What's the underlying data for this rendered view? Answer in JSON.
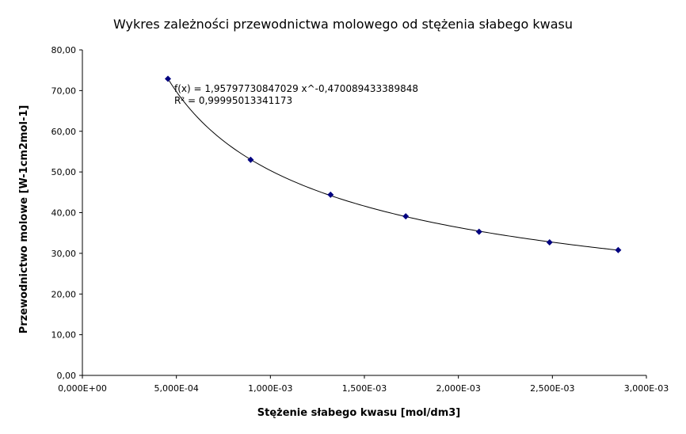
{
  "chart_data": {
    "type": "scatter",
    "title": "Wykres zależności przewodnictwa molowego od stężenia słabego kwasu",
    "xlabel": "Stężenie słabego kwasu [mol/dm3]",
    "ylabel": "Przewodnictwo molowe [W-1cm2mol-1]",
    "xlim": [
      0,
      0.003
    ],
    "ylim": [
      0,
      80
    ],
    "x_ticks": [
      0,
      0.0005,
      0.001,
      0.0015,
      0.002,
      0.0025,
      0.003
    ],
    "x_tick_labels": [
      "0,000E+00",
      "5,000E-04",
      "1,000E-03",
      "1,500E-03",
      "2,000E-03",
      "2,500E-03",
      "3,000E-03"
    ],
    "y_ticks": [
      0,
      10,
      20,
      30,
      40,
      50,
      60,
      70,
      80
    ],
    "y_tick_labels": [
      "0,00",
      "10,00",
      "20,00",
      "30,00",
      "40,00",
      "50,00",
      "60,00",
      "70,00",
      "80,00"
    ],
    "grid": false,
    "series": [
      {
        "x": [
          0.000455,
          0.000895,
          0.00132,
          0.00172,
          0.00211,
          0.002485,
          0.00285
        ],
        "y": [
          72.9,
          53.0,
          44.4,
          39.1,
          35.3,
          32.7,
          30.8
        ]
      }
    ],
    "trendline": {
      "type": "power",
      "a": 1.95797730847029,
      "b": -0.470089433389848,
      "x_range": [
        0.000455,
        0.00285
      ]
    },
    "annotations": {
      "equation": "f(x) = 1,95797730847029 x^-0,470089433389848",
      "r_squared": "R² = 0,99995013341173"
    },
    "colors": {
      "marker": "#000080",
      "trendline": "#000000",
      "axis": "#000000"
    }
  }
}
